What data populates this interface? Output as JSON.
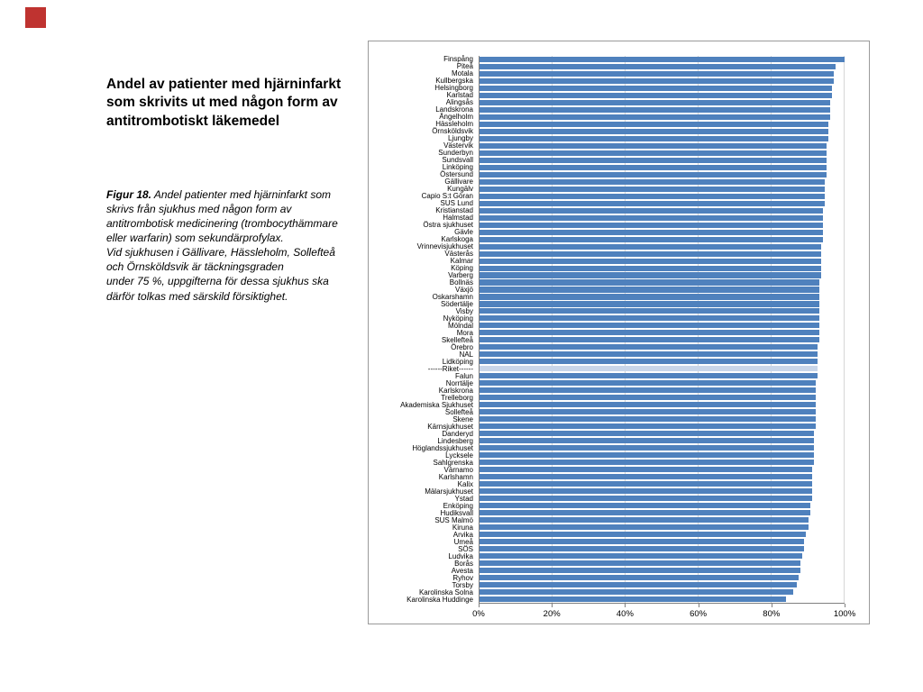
{
  "slide": {
    "title": "Andel av patienter med hjärninfarkt som skrivits ut med någon form av antitrombotiskt läkemedel",
    "caption_label": "Figur 18.",
    "caption_body": " Andel patienter med hjärninfarkt som skrivs från sjukhus med någon form av antitrombotisk medicinering (trombocythämmare eller warfarin) som sekundärprofylax.\nVid sjukhusen i Gällivare, Hässleholm, Sollefteå och Örnsköldsvik är täckningsgraden\nunder 75 %, uppgifterna för dessa sjukhus ska därför tolkas med särskild försiktighet.",
    "accent_color": "#bf3330"
  },
  "chart_data": {
    "type": "bar",
    "orientation": "horizontal",
    "title": "",
    "xlabel": "",
    "ylabel": "",
    "xlim": [
      0,
      100
    ],
    "grid": true,
    "x_ticks": [
      0,
      20,
      40,
      60,
      80,
      100
    ],
    "x_tick_labels": [
      "0%",
      "20%",
      "40%",
      "60%",
      "80%",
      "100%"
    ],
    "bar_color": "#4f81bd",
    "highlight_category": "------Riket------",
    "highlight_color": "#c9d6e9",
    "categories": [
      "Finspång",
      "Piteå",
      "Motala",
      "Kullbergska",
      "Helsingborg",
      "Karlstad",
      "Alingsås",
      "Landskrona",
      "Ängelholm",
      "Hässleholm",
      "Örnsköldsvik",
      "Ljungby",
      "Västervik",
      "Sunderbyn",
      "Sundsvall",
      "Linköping",
      "Östersund",
      "Gällivare",
      "Kungälv",
      "Capio S:t Göran",
      "SUS Lund",
      "Kristianstad",
      "Halmstad",
      "Östra sjukhuset",
      "Gävle",
      "Karlskoga",
      "Vrinnevisjukhuset",
      "Västerås",
      "Kalmar",
      "Köping",
      "Varberg",
      "Bollnäs",
      "Växjö",
      "Oskarshamn",
      "Södertälje",
      "Visby",
      "Nyköping",
      "Mölndal",
      "Mora",
      "Skellefteå",
      "Örebro",
      "NAL",
      "Lidköping",
      "------Riket------",
      "Falun",
      "Norrtälje",
      "Karlskrona",
      "Trelleborg",
      "Akademiska Sjukhuset",
      "Sollefteå",
      "Skene",
      "Kärnsjukhuset",
      "Danderyd",
      "Lindesberg",
      "Höglandssjukhuset",
      "Lycksele",
      "Sahlgrenska",
      "Värnamo",
      "Karlshamn",
      "Kalix",
      "Mälarsjukhuset",
      "Ystad",
      "Enköping",
      "Hudiksvall",
      "SUS Malmö",
      "Kiruna",
      "Arvika",
      "Umeå",
      "SÖS",
      "Ludvika",
      "Borås",
      "Avesta",
      "Ryhov",
      "Torsby",
      "Karolinska Solna",
      "Karolinska Huddinge"
    ],
    "values": [
      100,
      97.5,
      97,
      97,
      96.5,
      96.5,
      96,
      96,
      96,
      95.5,
      95.5,
      95.5,
      95,
      95,
      95,
      95,
      95,
      94.5,
      94.5,
      94.5,
      94.5,
      94,
      94,
      94,
      94,
      94,
      93.5,
      93.5,
      93.5,
      93.5,
      93.5,
      93,
      93,
      93,
      93,
      93,
      93,
      93,
      93,
      93,
      92.5,
      92.5,
      92.5,
      92.5,
      92.5,
      92,
      92,
      92,
      92,
      92,
      92,
      92,
      91.5,
      91.5,
      91.5,
      91.5,
      91.5,
      91,
      91,
      91,
      91,
      91,
      90.5,
      90.5,
      90,
      90,
      89.5,
      89,
      89,
      88.5,
      88,
      88,
      87.5,
      87,
      86,
      84
    ]
  }
}
